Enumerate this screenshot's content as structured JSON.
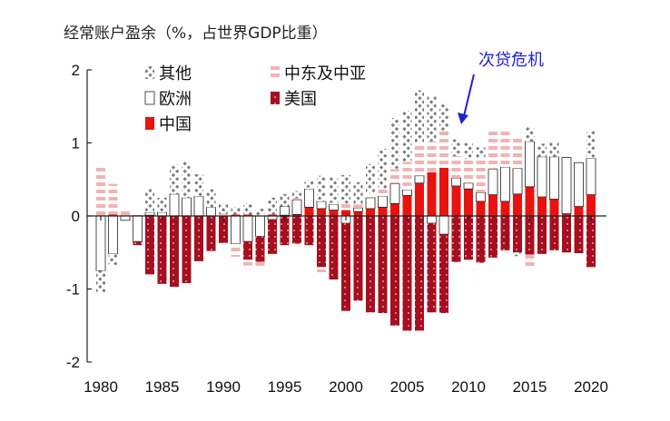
{
  "chart_data": {
    "type": "bar",
    "stacked": true,
    "title": "经常账户盈余（%，占世界GDP比重）",
    "xlabel": "",
    "ylabel": "",
    "ylim": [
      -2,
      2
    ],
    "yticks": [
      "2",
      "1",
      "0",
      "-1",
      "-2"
    ],
    "xticks": [
      "1980",
      "1985",
      "1990",
      "1995",
      "2000",
      "2005",
      "2010",
      "2015",
      "2020"
    ],
    "grid": false,
    "legend_position": "top-left",
    "annotation": {
      "text": "次贷危机",
      "year": 2008.5
    },
    "categories": [
      1980,
      1981,
      1982,
      1983,
      1984,
      1985,
      1986,
      1987,
      1988,
      1989,
      1990,
      1991,
      1992,
      1993,
      1994,
      1995,
      1996,
      1997,
      1998,
      1999,
      2000,
      2001,
      2002,
      2003,
      2004,
      2005,
      2006,
      2007,
      2008,
      2009,
      2010,
      2011,
      2012,
      2013,
      2014,
      2015,
      2016,
      2017,
      2018,
      2019,
      2020
    ],
    "series": [
      {
        "name": "中国",
        "key": "china",
        "color": "#e8130f",
        "values": [
          0.01,
          0.02,
          0.01,
          0.01,
          0.01,
          0.0,
          0.0,
          0.0,
          0.0,
          0.0,
          0.0,
          0.02,
          0.02,
          0.0,
          0.02,
          0.01,
          0.02,
          0.12,
          0.1,
          0.08,
          0.08,
          0.06,
          0.1,
          0.12,
          0.17,
          0.28,
          0.45,
          0.6,
          0.66,
          0.41,
          0.37,
          0.2,
          0.29,
          0.2,
          0.3,
          0.4,
          0.26,
          0.23,
          0.03,
          0.13,
          0.29
        ]
      },
      {
        "name": "欧洲",
        "key": "europe",
        "color": "#ffffff",
        "values": [
          -0.75,
          -0.52,
          -0.06,
          -0.35,
          0.04,
          0.05,
          0.3,
          0.25,
          0.27,
          0.12,
          0.0,
          -0.38,
          -0.35,
          -0.28,
          -0.05,
          0.12,
          0.2,
          0.25,
          0.1,
          0.08,
          -0.1,
          0.05,
          0.15,
          0.15,
          0.27,
          0.08,
          0.1,
          -0.1,
          -0.25,
          0.11,
          0.08,
          0.12,
          0.35,
          0.47,
          0.35,
          0.62,
          0.55,
          0.58,
          0.77,
          0.6,
          0.5
        ]
      },
      {
        "name": "美国",
        "key": "us",
        "color": "#a50f1f",
        "values": [
          0.0,
          0.0,
          0.0,
          -0.05,
          -0.8,
          -0.93,
          -0.97,
          -0.92,
          -0.62,
          -0.48,
          -0.37,
          0.0,
          -0.25,
          -0.35,
          -0.47,
          -0.4,
          -0.38,
          -0.4,
          -0.7,
          -0.87,
          -1.2,
          -1.16,
          -1.32,
          -1.33,
          -1.5,
          -1.57,
          -1.57,
          -1.22,
          -1.08,
          -0.63,
          -0.6,
          -0.64,
          -0.57,
          -0.47,
          -0.5,
          -0.53,
          -0.52,
          -0.47,
          -0.5,
          -0.51,
          -0.7
        ]
      },
      {
        "name": "中东及中亚",
        "key": "mideast",
        "color": "#f2b3b3",
        "values": [
          0.65,
          0.42,
          0.1,
          0.0,
          0.0,
          0.0,
          0.0,
          0.0,
          0.0,
          0.0,
          0.03,
          -0.18,
          -0.08,
          -0.08,
          0.0,
          0.0,
          0.02,
          0.02,
          -0.07,
          0.02,
          0.08,
          0.05,
          0.06,
          0.1,
          0.2,
          0.38,
          0.45,
          0.42,
          0.5,
          0.3,
          0.33,
          0.47,
          0.55,
          0.5,
          0.44,
          0.0,
          0.0,
          0.0,
          0.0,
          0.0,
          0.0
        ]
      },
      {
        "name": "其他",
        "key": "other",
        "color": "#888888",
        "values": [
          -0.3,
          -0.15,
          0.0,
          0.0,
          0.32,
          0.2,
          0.4,
          0.5,
          0.3,
          0.25,
          0.14,
          0.1,
          0.15,
          0.1,
          0.23,
          0.17,
          0.1,
          0.1,
          0.35,
          0.35,
          0.4,
          0.3,
          0.4,
          0.55,
          0.7,
          0.7,
          0.72,
          0.62,
          0.38,
          0.23,
          0.22,
          0.15,
          0.0,
          0.0,
          0.0,
          0.2,
          0.18,
          0.2,
          0.0,
          0.0,
          0.38
        ]
      }
    ],
    "negative_extra": {
      "mideast": {
        "2015": -0.2
      },
      "other": {
        "2014": -0.05
      }
    }
  }
}
